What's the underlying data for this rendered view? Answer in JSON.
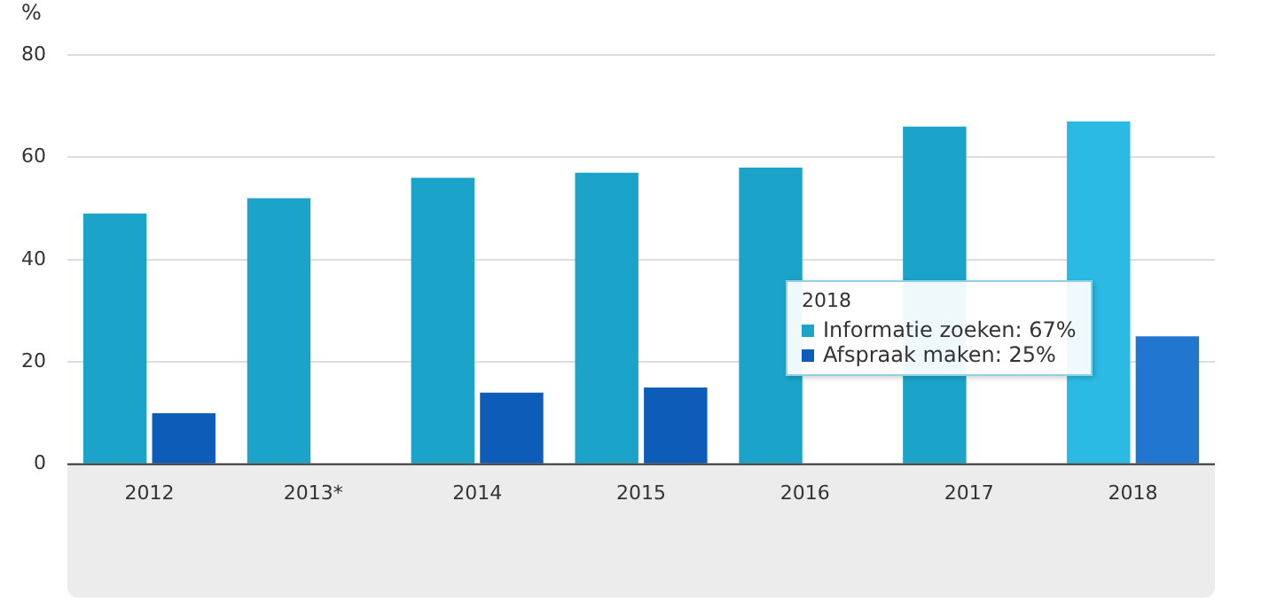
{
  "chart_data": {
    "type": "bar",
    "ylabel": "%",
    "categories": [
      "2012",
      "2013*",
      "2014",
      "2015",
      "2016",
      "2017",
      "2018"
    ],
    "series": [
      {
        "color": "#1ba3c9",
        "colors": [
          "#1ba3c9",
          "#1ba3c9",
          "#1ba3c9",
          "#1ba3c9",
          "#1ba3c9",
          "#1ba3c9",
          "#2bbae4"
        ],
        "values": [
          49,
          52,
          56,
          57,
          58,
          66,
          67
        ]
      },
      {
        "color": "#0d5cb8",
        "colors": [
          "#0d5cb8",
          "#0d5cb8",
          "#0d5cb8",
          "#0d5cb8",
          "#0d5cb8",
          "#0d5cb8",
          "#2176d0"
        ],
        "values": [
          10,
          null,
          14,
          15,
          null,
          null,
          25
        ]
      }
    ],
    "ylim": [
      0,
      80
    ],
    "yticks": [
      0,
      20,
      40,
      60,
      80
    ],
    "grid": "y",
    "annotations": [
      "2018",
      "Informatie zoeken: 67%",
      "Afspraak maken: 25%"
    ]
  }
}
